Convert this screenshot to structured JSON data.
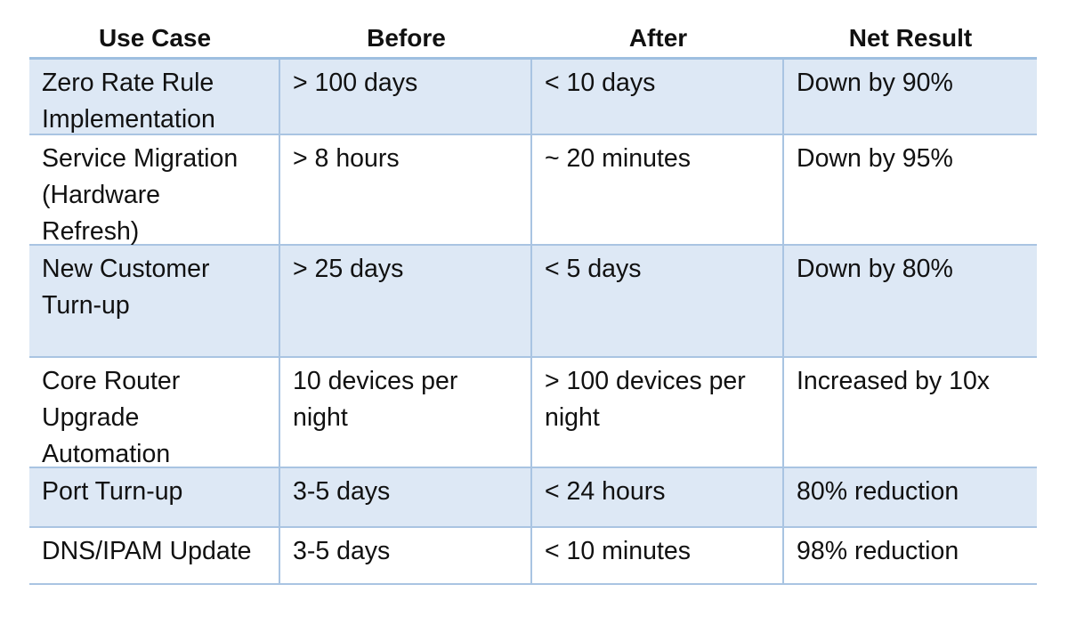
{
  "table": {
    "headers": [
      "Use Case",
      "Before",
      "After",
      "Net Result"
    ],
    "rows": [
      {
        "use_case": "Zero Rate Rule\nImplementation",
        "before": "> 100 days",
        "after": "< 10 days",
        "net_result": "Down by 90%"
      },
      {
        "use_case": "Service Migration\n(Hardware\nRefresh)",
        "before": "> 8 hours",
        "after": "~ 20 minutes",
        "net_result": "Down by 95%"
      },
      {
        "use_case": "New Customer\nTurn-up",
        "before": "> 25 days",
        "after": "< 5 days",
        "net_result": "Down by 80%"
      },
      {
        "use_case": "Core Router\nUpgrade\nAutomation",
        "before": "10 devices per\nnight",
        "after": "> 100 devices per\nnight",
        "net_result": "Increased by 10x"
      },
      {
        "use_case": "Port Turn-up",
        "before": "3-5 days",
        "after": "< 24 hours",
        "net_result": "80% reduction"
      },
      {
        "use_case": "DNS/IPAM Update",
        "before": "3-5 days",
        "after": "< 10 minutes",
        "net_result": "98% reduction"
      }
    ]
  },
  "colors": {
    "shaded_row": "#dde8f5",
    "border": "#a9c4e2"
  }
}
